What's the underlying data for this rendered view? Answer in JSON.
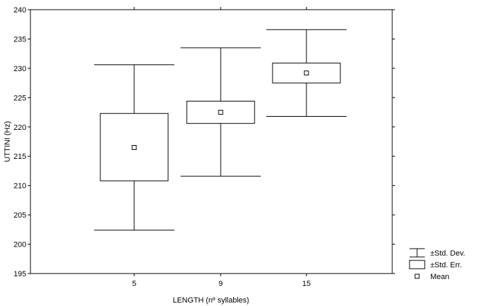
{
  "chart_data": {
    "type": "box",
    "xlabel": "LENGTH (nº syllables)",
    "ylabel": "UTTINI (Hz)",
    "ylim": [
      195,
      240
    ],
    "yticks": [
      195,
      200,
      205,
      210,
      215,
      220,
      225,
      230,
      235,
      240
    ],
    "grid": false,
    "legend_position": "bottom-right outside",
    "categories": [
      "5",
      "9",
      "15"
    ],
    "mean": [
      216.5,
      222.5,
      229.2
    ],
    "std_err_low": [
      210.8,
      220.6,
      227.5
    ],
    "std_err_high": [
      222.3,
      224.4,
      230.9
    ],
    "std_dev_low": [
      202.4,
      211.6,
      221.8
    ],
    "std_dev_high": [
      230.6,
      233.5,
      236.6
    ],
    "legend": [
      {
        "symbol": "whisker",
        "label": "±Std. Dev."
      },
      {
        "symbol": "box",
        "label": "±Std. Err."
      },
      {
        "symbol": "mean",
        "label": "Mean"
      }
    ],
    "colors": {
      "stroke": "#000000",
      "fill": "#ffffff"
    }
  }
}
